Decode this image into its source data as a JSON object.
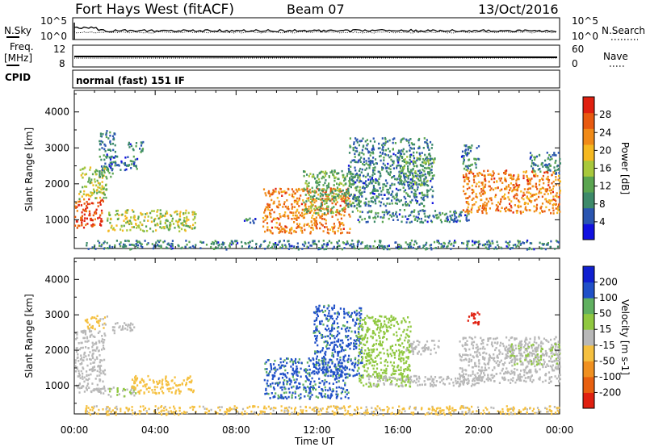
{
  "header": {
    "station": "Fort Hays West (fitACF)",
    "beam": "Beam 07",
    "date": "13/Oct/2016"
  },
  "strip1": {
    "left_label": "N.Sky",
    "right_label": "N.Search",
    "left_ticks": [
      "10^5",
      "10^0"
    ],
    "right_ticks": [
      "10^5",
      "10^0"
    ]
  },
  "strip2": {
    "left_label_1": "Freq.",
    "left_label_2": "[MHz]",
    "right_label": "Nave",
    "left_ticks": [
      "12",
      "8"
    ],
    "right_ticks": [
      "60",
      "0"
    ]
  },
  "cpid": {
    "label": "CPID",
    "text": "normal (fast) 151 IF"
  },
  "colors": {
    "power_scale": [
      "#1010e0",
      "#2a55b0",
      "#3d8a6a",
      "#5aa550",
      "#a8c83c",
      "#f5b820",
      "#f08a18",
      "#e85a10",
      "#e02010"
    ],
    "velocity_scale": [
      "#1020d0",
      "#2050c8",
      "#60b060",
      "#90c840",
      "#b8b8b8",
      "#f5c040",
      "#f09020",
      "#e86010",
      "#e02010"
    ]
  },
  "chart_data": [
    {
      "type": "heatmap",
      "title": "",
      "xlabel": "Time UT",
      "ylabel": "Slant Range [km]",
      "x_ticks": [
        "00:00",
        "04:00",
        "08:00",
        "12:00",
        "16:00",
        "20:00",
        "00:00"
      ],
      "y_ticks": [
        "1000",
        "2000",
        "3000",
        "4000"
      ],
      "ylim": [
        200,
        4600
      ],
      "colorbar_label": "Power [dB]",
      "colorbar_ticks": [
        "4",
        "8",
        "12",
        "16",
        "20",
        "24",
        "28"
      ],
      "colorbar_range": [
        0,
        32
      ],
      "regions": [
        {
          "t0": 0.0,
          "t1": 1.4,
          "r0": 800,
          "r1": 1600,
          "level": 28
        },
        {
          "t0": 0.2,
          "t1": 1.6,
          "r0": 1600,
          "r1": 2500,
          "level": 16
        },
        {
          "t0": 1.2,
          "t1": 2.0,
          "r0": 2200,
          "r1": 3500,
          "level": 8
        },
        {
          "t0": 1.8,
          "t1": 3.1,
          "r0": 2400,
          "r1": 2800,
          "level": 8
        },
        {
          "t0": 2.6,
          "t1": 3.4,
          "r0": 2900,
          "r1": 3200,
          "level": 8
        },
        {
          "t0": 1.6,
          "t1": 6.0,
          "r0": 700,
          "r1": 1300,
          "level": 16
        },
        {
          "t0": 0.5,
          "t1": 24.0,
          "r0": 200,
          "r1": 450,
          "level": 8
        },
        {
          "t0": 8.3,
          "t1": 9.0,
          "r0": 900,
          "r1": 1100,
          "level": 8
        },
        {
          "t0": 9.3,
          "t1": 13.6,
          "r0": 650,
          "r1": 1900,
          "level": 24
        },
        {
          "t0": 11.3,
          "t1": 14.1,
          "r0": 1200,
          "r1": 2400,
          "level": 12
        },
        {
          "t0": 13.5,
          "t1": 17.7,
          "r0": 1400,
          "r1": 3300,
          "level": 8
        },
        {
          "t0": 16.0,
          "t1": 17.8,
          "r0": 2000,
          "r1": 2800,
          "level": 12
        },
        {
          "t0": 14.0,
          "t1": 19.5,
          "r0": 950,
          "r1": 1300,
          "level": 8
        },
        {
          "t0": 19.2,
          "t1": 24.0,
          "r0": 1200,
          "r1": 2400,
          "level": 24
        },
        {
          "t0": 19.1,
          "t1": 20.0,
          "r0": 2400,
          "r1": 3100,
          "level": 8
        },
        {
          "t0": 22.5,
          "t1": 24.0,
          "r0": 2300,
          "r1": 2900,
          "level": 8
        }
      ]
    },
    {
      "type": "heatmap",
      "title": "",
      "xlabel": "Time UT",
      "ylabel": "Slant Range [km]",
      "x_ticks": [
        "00:00",
        "04:00",
        "08:00",
        "12:00",
        "16:00",
        "20:00",
        "00:00"
      ],
      "y_ticks": [
        "1000",
        "2000",
        "3000",
        "4000"
      ],
      "ylim": [
        200,
        4600
      ],
      "colorbar_label": "Velocity [m s-1]",
      "colorbar_ticks": [
        "200",
        "100",
        "50",
        "15",
        "-15",
        "-50",
        "-100",
        "-200"
      ],
      "colorbar_range": [
        -250,
        250
      ],
      "regions": [
        {
          "t0": 0.0,
          "t1": 1.5,
          "r0": 800,
          "r1": 2600,
          "level": 0
        },
        {
          "t0": 0.5,
          "t1": 1.6,
          "r0": 2600,
          "r1": 3000,
          "level": -40
        },
        {
          "t0": 1.8,
          "t1": 3.0,
          "r0": 2500,
          "r1": 2800,
          "level": 0
        },
        {
          "t0": 1.6,
          "t1": 3.0,
          "r0": 700,
          "r1": 1000,
          "level": 30
        },
        {
          "t0": 2.8,
          "t1": 5.9,
          "r0": 800,
          "r1": 1300,
          "level": -60
        },
        {
          "t0": 0.5,
          "t1": 24.0,
          "r0": 200,
          "r1": 450,
          "level": -40
        },
        {
          "t0": 9.3,
          "t1": 13.6,
          "r0": 650,
          "r1": 1800,
          "level": 150
        },
        {
          "t0": 11.8,
          "t1": 14.2,
          "r0": 1300,
          "r1": 3300,
          "level": 150
        },
        {
          "t0": 14.0,
          "t1": 16.6,
          "r0": 1000,
          "r1": 3000,
          "level": 60
        },
        {
          "t0": 14.5,
          "t1": 20.0,
          "r0": 1000,
          "r1": 1300,
          "level": 0
        },
        {
          "t0": 16.3,
          "t1": 18.0,
          "r0": 1900,
          "r1": 2300,
          "level": 0
        },
        {
          "t0": 19.0,
          "t1": 24.0,
          "r0": 1100,
          "r1": 2400,
          "level": 0
        },
        {
          "t0": 19.4,
          "t1": 20.0,
          "r0": 2700,
          "r1": 3100,
          "level": -220
        },
        {
          "t0": 21.5,
          "t1": 24.0,
          "r0": 1600,
          "r1": 2200,
          "level": 25
        }
      ]
    }
  ]
}
